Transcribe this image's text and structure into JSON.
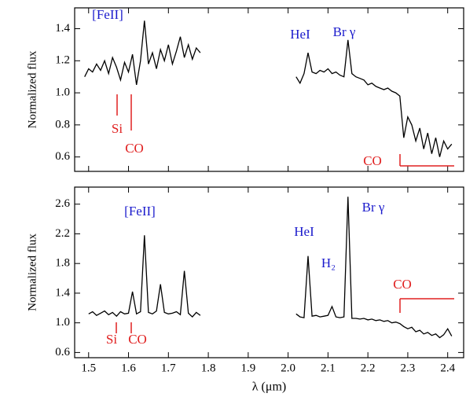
{
  "chart_data": [
    {
      "type": "line",
      "ylabel": "Normalized flux",
      "xlim": [
        1.465,
        2.44
      ],
      "ylim": [
        0.51,
        1.53
      ],
      "xticks": [
        1.5,
        1.6,
        1.7,
        1.8,
        1.9,
        {
          "value": 2,
          "label": "2.0"
        },
        2.1,
        2.2,
        2.3,
        2.4
      ],
      "x_tick_labels": false,
      "yticks": [
        0.6,
        0.8,
        {
          "value": 1,
          "label": "1.0"
        },
        1.2,
        1.4
      ],
      "series": [
        {
          "color": "#000000",
          "x": [
            1.49,
            1.5,
            1.51,
            1.52,
            1.53,
            1.54,
            1.55,
            1.56,
            1.57,
            1.58,
            1.59,
            1.6,
            1.61,
            1.62,
            1.63,
            1.64,
            1.65,
            1.66,
            1.67,
            1.68,
            1.69,
            1.7,
            1.71,
            1.72,
            1.73,
            1.74,
            1.75,
            1.76,
            1.77,
            1.78
          ],
          "values": [
            1.1,
            1.15,
            1.13,
            1.18,
            1.14,
            1.2,
            1.12,
            1.22,
            1.16,
            1.08,
            1.19,
            1.13,
            1.24,
            1.05,
            1.2,
            1.45,
            1.18,
            1.25,
            1.15,
            1.27,
            1.2,
            1.3,
            1.18,
            1.26,
            1.35,
            1.22,
            1.3,
            1.21,
            1.28,
            1.25
          ]
        },
        {
          "color": "#000000",
          "x": [
            2.02,
            2.03,
            2.04,
            2.05,
            2.06,
            2.07,
            2.08,
            2.09,
            2.1,
            2.11,
            2.12,
            2.13,
            2.14,
            2.15,
            2.16,
            2.17,
            2.18,
            2.19,
            2.2,
            2.21,
            2.22,
            2.23,
            2.24,
            2.25,
            2.26,
            2.27,
            2.28,
            2.29,
            2.3,
            2.31,
            2.32,
            2.33,
            2.34,
            2.35,
            2.36,
            2.37,
            2.38,
            2.39,
            2.4,
            2.41
          ],
          "values": [
            1.1,
            1.06,
            1.12,
            1.25,
            1.13,
            1.12,
            1.14,
            1.13,
            1.15,
            1.12,
            1.13,
            1.11,
            1.1,
            1.33,
            1.12,
            1.1,
            1.09,
            1.08,
            1.05,
            1.06,
            1.04,
            1.03,
            1.02,
            1.03,
            1.01,
            1.0,
            0.98,
            0.72,
            0.85,
            0.8,
            0.7,
            0.78,
            0.65,
            0.75,
            0.62,
            0.72,
            0.6,
            0.7,
            0.65,
            0.68
          ]
        }
      ],
      "annotations": [
        {
          "text": "[FeII]",
          "color": "#1a1acc"
        },
        {
          "text": "HeI",
          "color": "#1a1acc"
        },
        {
          "text": "Br γ",
          "color": "#1a1acc"
        },
        {
          "text": "Si",
          "color": "#e02020"
        },
        {
          "text": "CO",
          "color": "#e02020"
        },
        {
          "text": "CO",
          "color": "#e02020"
        }
      ]
    },
    {
      "type": "line",
      "ylabel": "Normalized flux",
      "xlabel": "λ  (μm)",
      "xlim": [
        1.465,
        2.44
      ],
      "ylim": [
        0.53,
        2.83
      ],
      "xticks": [
        1.5,
        1.6,
        1.7,
        1.8,
        1.9,
        {
          "value": 2,
          "label": "2.0"
        },
        2.1,
        2.2,
        2.3,
        2.4
      ],
      "x_tick_labels": true,
      "yticks": [
        0.6,
        {
          "value": 1,
          "label": "1.0"
        },
        1.4,
        1.8,
        2.2,
        2.6
      ],
      "series": [
        {
          "color": "#000000",
          "x": [
            1.5,
            1.51,
            1.52,
            1.53,
            1.54,
            1.55,
            1.56,
            1.57,
            1.58,
            1.59,
            1.6,
            1.61,
            1.62,
            1.63,
            1.64,
            1.65,
            1.66,
            1.67,
            1.68,
            1.69,
            1.7,
            1.71,
            1.72,
            1.73,
            1.74,
            1.75,
            1.76,
            1.77,
            1.78
          ],
          "values": [
            1.12,
            1.15,
            1.1,
            1.13,
            1.16,
            1.11,
            1.14,
            1.09,
            1.15,
            1.12,
            1.13,
            1.42,
            1.12,
            1.15,
            2.18,
            1.14,
            1.12,
            1.16,
            1.52,
            1.14,
            1.12,
            1.13,
            1.15,
            1.11,
            1.7,
            1.13,
            1.08,
            1.14,
            1.1
          ]
        },
        {
          "color": "#000000",
          "x": [
            2.02,
            2.03,
            2.04,
            2.05,
            2.06,
            2.07,
            2.08,
            2.09,
            2.1,
            2.11,
            2.12,
            2.13,
            2.14,
            2.15,
            2.16,
            2.17,
            2.18,
            2.19,
            2.2,
            2.21,
            2.22,
            2.23,
            2.24,
            2.25,
            2.26,
            2.27,
            2.28,
            2.29,
            2.3,
            2.31,
            2.32,
            2.33,
            2.34,
            2.35,
            2.36,
            2.37,
            2.38,
            2.39,
            2.4,
            2.41
          ],
          "values": [
            1.12,
            1.08,
            1.07,
            1.9,
            1.09,
            1.1,
            1.08,
            1.09,
            1.1,
            1.22,
            1.08,
            1.07,
            1.08,
            2.7,
            1.06,
            1.06,
            1.05,
            1.06,
            1.04,
            1.05,
            1.03,
            1.04,
            1.02,
            1.03,
            1.0,
            1.01,
            0.99,
            0.95,
            0.92,
            0.94,
            0.88,
            0.9,
            0.85,
            0.87,
            0.83,
            0.85,
            0.8,
            0.84,
            0.92,
            0.82
          ]
        }
      ],
      "annotations": [
        {
          "text": "[FeII]",
          "color": "#1a1acc"
        },
        {
          "text": "HeI",
          "color": "#1a1acc"
        },
        {
          "text": "H₂",
          "color": "#1a1acc"
        },
        {
          "text": "Br γ",
          "color": "#1a1acc"
        },
        {
          "text": "Si",
          "color": "#e02020"
        },
        {
          "text": "CO",
          "color": "#e02020"
        },
        {
          "text": "CO",
          "color": "#e02020"
        }
      ]
    }
  ]
}
